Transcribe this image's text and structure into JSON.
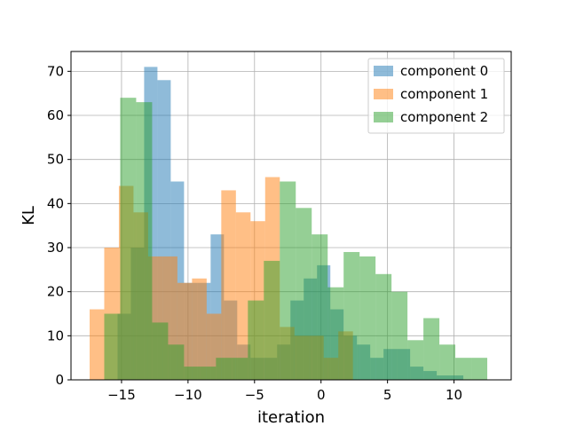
{
  "chart_data": {
    "type": "histogram",
    "xlabel": "iteration",
    "ylabel": "KL",
    "xlim": [
      -18.8,
      14.3
    ],
    "ylim": [
      0,
      74.5
    ],
    "xticks": [
      -15,
      -10,
      -5,
      0,
      5,
      10
    ],
    "xtick_labels": [
      "−15",
      "−10",
      "−5",
      "0",
      "5",
      "10"
    ],
    "yticks": [
      0,
      10,
      20,
      30,
      40,
      50,
      60,
      70
    ],
    "ytick_labels": [
      "0",
      "10",
      "20",
      "30",
      "40",
      "50",
      "60",
      "70"
    ],
    "grid": true,
    "legend_position": "top-right",
    "series": [
      {
        "name": "component 0",
        "color": "#1f77b4",
        "bin_edges": [
          -15.3,
          -14.3,
          -13.3,
          -12.3,
          -11.3,
          -10.3,
          -9.3,
          -8.3,
          -7.3,
          -6.3,
          -5.3,
          -4.3,
          -3.3,
          -2.3,
          -1.3,
          -0.3,
          0.7,
          1.7,
          2.7,
          3.7,
          4.7,
          5.7,
          6.7,
          7.7,
          8.7,
          9.7,
          10.7
        ],
        "counts": [
          15,
          30,
          71,
          68,
          45,
          22,
          22,
          33,
          18,
          8,
          5,
          5,
          8,
          18,
          23,
          26,
          16,
          10,
          8,
          5,
          7,
          7,
          3,
          2,
          1,
          1
        ]
      },
      {
        "name": "component 1",
        "color": "#ff7f0e",
        "bin_edges": [
          -17.4,
          -16.3,
          -15.2,
          -14.1,
          -13.0,
          -11.9,
          -10.8,
          -9.7,
          -8.6,
          -7.5,
          -6.4,
          -5.3,
          -4.2,
          -3.1,
          -2.0,
          -0.9,
          0.2,
          1.3,
          2.4
        ],
        "counts": [
          16,
          30,
          44,
          38,
          28,
          28,
          22,
          23,
          15,
          43,
          38,
          36,
          46,
          12,
          10,
          10,
          5,
          11
        ]
      },
      {
        "name": "component 2",
        "color": "#2ca02c",
        "bin_edges": [
          -16.3,
          -15.1,
          -13.9,
          -12.7,
          -11.5,
          -10.3,
          -9.1,
          -7.9,
          -6.7,
          -5.5,
          -4.3,
          -3.1,
          -1.9,
          -0.7,
          0.5,
          1.7,
          2.9,
          4.1,
          5.3,
          6.5,
          7.7,
          8.9,
          10.1,
          11.3,
          12.5
        ],
        "counts": [
          15,
          64,
          63,
          13,
          8,
          3,
          3,
          5,
          5,
          18,
          27,
          45,
          39,
          33,
          21,
          29,
          28,
          24,
          20,
          9,
          14,
          8,
          5,
          5
        ]
      }
    ]
  }
}
